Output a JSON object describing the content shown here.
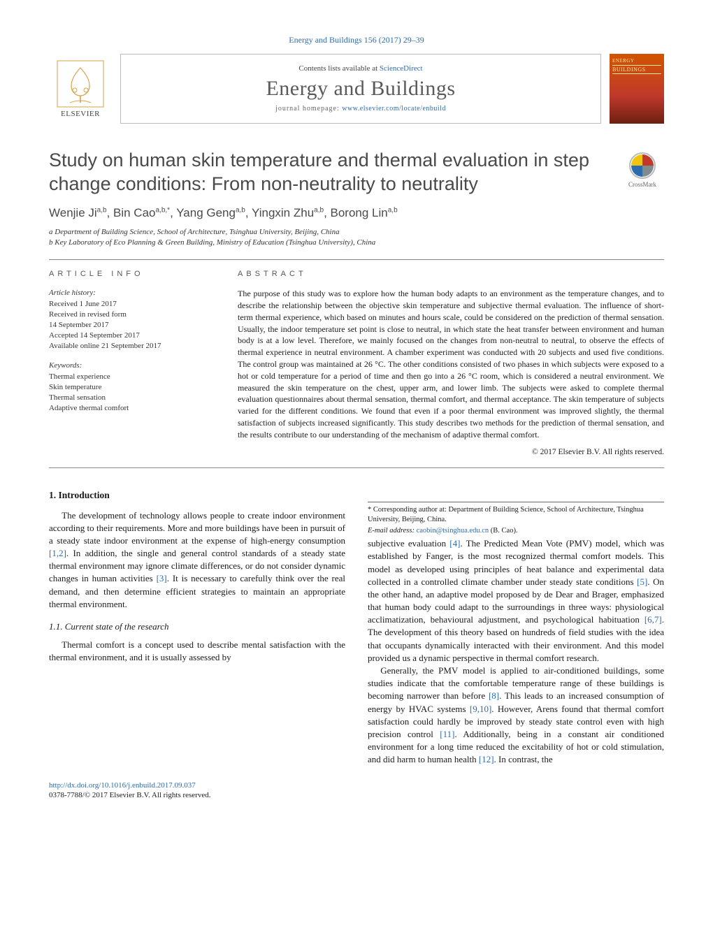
{
  "header": {
    "citation": "Energy and Buildings 156 (2017) 29–39",
    "contents_prefix": "Contents lists available at ",
    "contents_link": "ScienceDirect",
    "journal_name": "Energy and Buildings",
    "homepage_prefix": "journal homepage: ",
    "homepage_link": "www.elsevier.com/locate/enbuild",
    "publisher_label": "ELSEVIER",
    "cover_top": "ENERGY",
    "cover_mid": "BUILDINGS",
    "crossmark_label": "CrossMark"
  },
  "title": "Study on human skin temperature and thermal evaluation in step change conditions: From non-neutrality to neutrality",
  "authors_html": "Wenjie Ji<sup>a,b</sup>, Bin Cao<sup>a,b,*</sup>, Yang Geng<sup>a,b</sup>, Yingxin Zhu<sup>a,b</sup>, Borong Lin<sup>a,b</sup>",
  "affiliations": [
    "a Department of Building Science, School of Architecture, Tsinghua University, Beijing, China",
    "b Key Laboratory of Eco Planning & Green Building, Ministry of Education (Tsinghua University), China"
  ],
  "article_info": {
    "heading": "article info",
    "history_title": "Article history:",
    "history": [
      "Received 1 June 2017",
      "Received in revised form",
      "14 September 2017",
      "Accepted 14 September 2017",
      "Available online 21 September 2017"
    ],
    "keywords_title": "Keywords:",
    "keywords": [
      "Thermal experience",
      "Skin temperature",
      "Thermal sensation",
      "Adaptive thermal comfort"
    ]
  },
  "abstract": {
    "heading": "abstract",
    "text": "The purpose of this study was to explore how the human body adapts to an environment as the temperature changes, and to describe the relationship between the objective skin temperature and subjective thermal evaluation. The influence of short-term thermal experience, which based on minutes and hours scale, could be considered on the prediction of thermal sensation. Usually, the indoor temperature set point is close to neutral, in which state the heat transfer between environment and human body is at a low level. Therefore, we mainly focused on the changes from non-neutral to neutral, to observe the effects of thermal experience in neutral environment. A chamber experiment was conducted with 20 subjects and used five conditions. The control group was maintained at 26 °C. The other conditions consisted of two phases in which subjects were exposed to a hot or cold temperature for a period of time and then go into a 26 °C room, which is considered a neutral environment. We measured the skin temperature on the chest, upper arm, and lower limb. The subjects were asked to complete thermal evaluation questionnaires about thermal sensation, thermal comfort, and thermal acceptance. The skin temperature of subjects varied for the different conditions. We found that even if a poor thermal environment was improved slightly, the thermal satisfaction of subjects increased significantly. This study describes two methods for the prediction of thermal sensation, and the results contribute to our understanding of the mechanism of adaptive thermal comfort.",
    "copyright": "© 2017 Elsevier B.V. All rights reserved."
  },
  "body": {
    "intro_heading": "1.  Introduction",
    "intro_para": "The development of technology allows people to create indoor environment according to their requirements. More and more buildings have been in pursuit of a steady state indoor environment at the expense of high-energy consumption [1,2]. In addition, the single and general control standards of a steady state thermal environment may ignore climate differences, or do not consider dynamic changes in human activities [3]. It is necessary to carefully think over the real demand, and then determine efficient strategies to maintain an appropriate thermal environment.",
    "sub_heading": "1.1.  Current state of the research",
    "sub_para1": "Thermal comfort is a concept used to describe mental satisfaction with the thermal environment, and it is usually assessed by",
    "col2_para1": "subjective evaluation [4]. The Predicted Mean Vote (PMV) model, which was established by Fanger, is the most recognized thermal comfort models. This model as developed using principles of heat balance and experimental data collected in a controlled climate chamber under steady state conditions [5]. On the other hand, an adaptive model proposed by de Dear and Brager, emphasized that human body could adapt to the surroundings in three ways: physiological acclimatization, behavioural adjustment, and psychological habituation [6,7]. The development of this theory based on hundreds of field studies with the idea that occupants dynamically interacted with their environment. And this model provided us a dynamic perspective in thermal comfort research.",
    "col2_para2": "Generally, the PMV model is applied to air-conditioned buildings, some studies indicate that the comfortable temperature range of these buildings is becoming narrower than before [8]. This leads to an increased consumption of energy by HVAC systems [9,10]. However, Arens found that thermal comfort satisfaction could hardly be improved by steady state control even with high precision control [11]. Additionally, being in a constant air conditioned environment for a long time reduced the excitability of hot or cold stimulation, and did harm to human health [12]. In contrast, the"
  },
  "footnote": {
    "corr": "* Corresponding author at: Department of Building Science, School of Architecture, Tsinghua University, Beijing, China.",
    "email_label": "E-mail address: ",
    "email": "caobin@tsinghua.edu.cn",
    "email_suffix": " (B. Cao)."
  },
  "footer": {
    "doi": "http://dx.doi.org/10.1016/j.enbuild.2017.09.037",
    "issn_line": "0378-7788/© 2017 Elsevier B.V. All rights reserved."
  },
  "colors": {
    "link": "#2b6cb0",
    "heading_gray": "#4a4a4a",
    "border_gray": "#888888"
  }
}
